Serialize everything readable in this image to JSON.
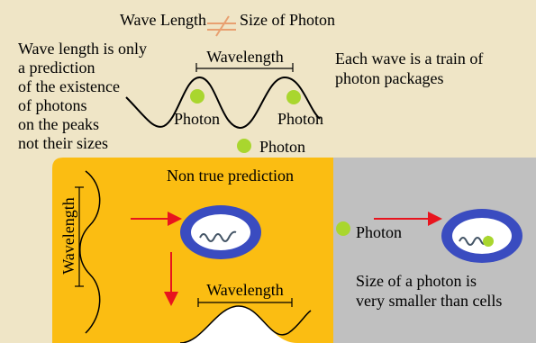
{
  "header": {
    "left": "Wave Length",
    "right": "Size of Photon"
  },
  "top": {
    "note_left": [
      "Wave length is only",
      "a prediction",
      "of the existence",
      "of photons",
      "on the peaks",
      "not their sizes"
    ],
    "wavelength": "Wavelength",
    "photons": [
      "Photon",
      "Photon",
      "Photon"
    ],
    "note_right": [
      "Each wave is a train of",
      "photon packages"
    ]
  },
  "left_panel": {
    "title": "Non true prediction",
    "vertical_label": "Wavelength",
    "bottom_label": "Wavelength"
  },
  "right_panel": {
    "photon": "Photon",
    "note": [
      "Size of a photon is",
      "very smaller than cells"
    ]
  }
}
